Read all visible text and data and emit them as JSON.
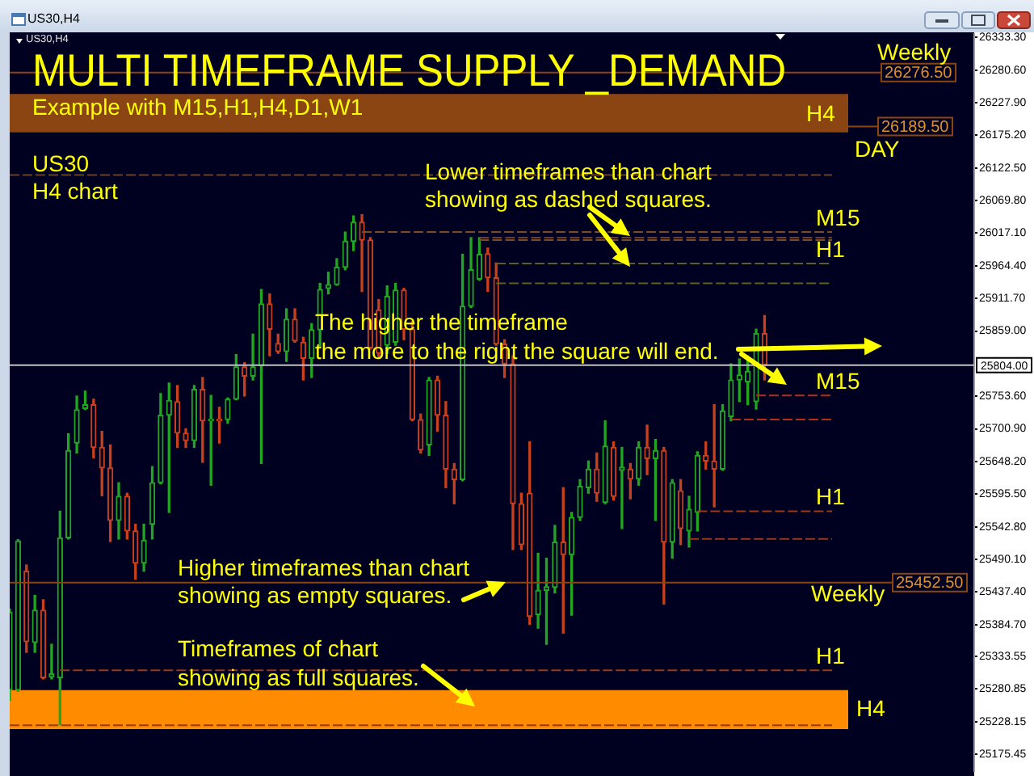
{
  "chart_data": {
    "type": "candlestick",
    "title": "MULTI TIMEFRAME SUPPLY _DEMAND",
    "subtitle": "Example with M15,H1,H4,D1,W1",
    "annotations": [
      "US30,H4",
      "US30,H4",
      "US30\nH4 chart",
      "Lower timeframes than chart\nshowing as dashed squares.",
      "The higher the timeframe\nthe more to the right the square will end.",
      "Higher timeframes than chart\nshowing as empty squares.",
      "Timeframes of chart\nshowing as full squares.",
      "Weekly",
      {
        "text": "DAY",
        "y": 26189.5
      },
      {
        "text": "Weekly",
        "y": 25452.5
      }
    ],
    "categories": [
      null,
      null,
      null,
      null,
      null,
      null,
      null,
      null,
      null,
      null,
      null,
      null,
      null,
      null,
      null,
      null,
      null,
      null,
      null,
      null,
      null,
      null,
      null,
      null,
      null,
      null,
      null,
      null,
      null,
      null,
      null,
      null,
      null,
      null,
      null,
      null,
      null,
      null,
      null,
      null,
      null,
      null,
      null,
      null,
      null,
      null,
      null,
      null,
      null,
      null,
      null,
      null,
      null,
      null,
      null,
      null,
      null,
      null,
      null,
      null,
      null,
      null,
      null,
      null,
      null,
      null,
      null,
      null,
      null,
      null,
      null,
      null,
      null,
      null,
      null,
      null,
      null,
      null,
      null,
      null,
      null,
      null,
      null,
      null,
      null,
      null,
      null,
      null,
      null,
      null,
      null,
      null,
      null,
      null,
      null,
      null,
      null,
      null,
      null,
      null,
      null,
      null,
      null,
      null,
      null,
      null,
      null,
      null,
      null,
      null,
      null,
      null,
      null,
      null,
      null,
      null
    ],
    "ohlc": [
      [
        25279,
        25410,
        25262,
        25405
      ],
      [
        25279,
        25522,
        25277,
        25520
      ],
      [
        25471,
        25481,
        25340,
        25357
      ],
      [
        25356,
        25432,
        25340,
        25408
      ],
      [
        25408,
        25425,
        25297,
        25299
      ],
      [
        25300,
        25353,
        25297,
        25305
      ],
      [
        25299,
        25568,
        25223,
        25525
      ],
      [
        25525,
        25693,
        25523,
        25666
      ],
      [
        25678,
        25754,
        25662,
        25732
      ],
      [
        25734,
        25762,
        25732,
        25740
      ],
      [
        25740,
        25749,
        25654,
        25671
      ],
      [
        25671,
        25697,
        25593,
        25638
      ],
      [
        25638,
        25675,
        25519,
        25553
      ],
      [
        25553,
        25614,
        25523,
        25592
      ],
      [
        25592,
        25597,
        25523,
        25536
      ],
      [
        25536,
        25547,
        25458,
        25484
      ],
      [
        25484,
        25547,
        25471,
        25521
      ],
      [
        25547,
        25640,
        25523,
        25614
      ],
      [
        25614,
        25758,
        25612,
        25723
      ],
      [
        25723,
        25775,
        25566,
        25747
      ],
      [
        25745,
        25771,
        25671,
        25694
      ],
      [
        25694,
        25701,
        25671,
        25682
      ],
      [
        25682,
        25771,
        25671,
        25765
      ],
      [
        25765,
        25784,
        25647,
        25714
      ],
      [
        25714,
        25755,
        25610,
        25716
      ],
      [
        25716,
        25736,
        25678,
        25714
      ],
      [
        25716,
        25751,
        25710,
        25749
      ],
      [
        25749,
        25821,
        25748,
        25801
      ],
      [
        25801,
        25808,
        25754,
        25786
      ],
      [
        25786,
        25854,
        25780,
        25801
      ],
      [
        25803,
        25926,
        25645,
        25903
      ],
      [
        25903,
        25919,
        25819,
        25862
      ],
      [
        25839,
        25854,
        25823,
        25826
      ],
      [
        25826,
        25895,
        25810,
        25878
      ],
      [
        25878,
        25895,
        25841,
        25843
      ],
      [
        25841,
        25849,
        25780,
        25815
      ],
      [
        25815,
        25871,
        25784,
        25861
      ],
      [
        25861,
        25936,
        25832,
        25926
      ],
      [
        25928,
        25954,
        25919,
        25934
      ],
      [
        25934,
        25976,
        25933,
        25962
      ],
      [
        25962,
        26019,
        25958,
        26004
      ],
      [
        26004,
        26045,
        25989,
        26035
      ],
      [
        26035,
        26047,
        25923,
        26006
      ],
      [
        26006,
        26010,
        25830,
        25832
      ],
      [
        25893,
        25910,
        25815,
        25823
      ],
      [
        25836,
        25932,
        25823,
        25915
      ],
      [
        25841,
        25936,
        25836,
        25925
      ],
      [
        25925,
        25928,
        25845,
        25862
      ],
      [
        25862,
        25875,
        25714,
        25716
      ],
      [
        25716,
        25725,
        25662,
        25667
      ],
      [
        25675,
        25784,
        25658,
        25780
      ],
      [
        25780,
        25786,
        25697,
        25723
      ],
      [
        25723,
        25745,
        25606,
        25636
      ],
      [
        25636,
        25645,
        25580,
        25619
      ],
      [
        25619,
        25983,
        25617,
        25899
      ],
      [
        25899,
        26010,
        25897,
        25958
      ],
      [
        25943,
        26010,
        25941,
        25983
      ],
      [
        25984,
        25993,
        25923,
        25945
      ],
      [
        25945,
        25969,
        25836,
        25838
      ],
      [
        25838,
        25845,
        25784,
        25806
      ],
      [
        25806,
        25819,
        25506,
        25580
      ],
      [
        25580,
        25597,
        25506,
        25514
      ],
      [
        25597,
        25680,
        25385,
        25398
      ],
      [
        25401,
        25500,
        25379,
        25440
      ],
      [
        25440,
        25492,
        25353,
        25446
      ],
      [
        25445,
        25545,
        25436,
        25518
      ],
      [
        25518,
        25606,
        25371,
        25498
      ],
      [
        25498,
        25566,
        25400,
        25558
      ],
      [
        25558,
        25619,
        25553,
        25608
      ],
      [
        25606,
        25649,
        25597,
        25636
      ],
      [
        25636,
        25662,
        25584,
        25597
      ],
      [
        25582,
        25714,
        25580,
        25673
      ],
      [
        25671,
        25680,
        25586,
        25592
      ],
      [
        25634,
        25671,
        25540,
        25639
      ],
      [
        25636,
        25645,
        25588,
        25620
      ],
      [
        25620,
        25680,
        25610,
        25671
      ],
      [
        25671,
        25707,
        25627,
        25653
      ],
      [
        25653,
        25684,
        25553,
        25666
      ],
      [
        25666,
        25671,
        25418,
        25518
      ],
      [
        25518,
        25619,
        25492,
        25614
      ],
      [
        25601,
        25619,
        25514,
        25540
      ],
      [
        25536,
        25592,
        25510,
        25571
      ],
      [
        25566,
        25664,
        25536,
        25658
      ],
      [
        25658,
        25680,
        25636,
        25649
      ],
      [
        25649,
        25740,
        25575,
        25636
      ],
      [
        25636,
        25740,
        25634,
        25730
      ],
      [
        25721,
        25806,
        25714,
        25780
      ],
      [
        25780,
        25814,
        25745,
        25788
      ],
      [
        25777,
        25819,
        25740,
        25794
      ],
      [
        25745,
        25862,
        25733,
        25855
      ],
      [
        25855,
        25884,
        25780,
        25804
      ],
      null,
      null,
      null,
      null,
      null,
      null,
      null,
      null,
      null,
      null,
      null,
      null,
      null,
      null,
      null,
      null,
      null,
      null,
      null,
      null,
      null,
      null,
      null,
      null,
      null
    ],
    "colors": [
      "#22a622",
      "#22a622",
      "#c8401c",
      "#22a622",
      "#c8401c",
      "#22a622",
      "#22a622",
      "#22a622",
      "#22a622",
      "#22a622",
      "#c8401c",
      "#c8401c",
      "#c8401c",
      "#22a622",
      "#c8401c",
      "#c8401c",
      "#22a622",
      "#22a622",
      "#22a622",
      "#22a622",
      "#c8401c",
      "#c8401c",
      "#22a622",
      "#c8401c",
      "#22a622",
      "#c8401c",
      "#22a622",
      "#22a622",
      "#c8401c",
      "#22a622",
      "#22a622",
      "#c8401c",
      "#c8401c",
      "#22a622",
      "#c8401c",
      "#c8401c",
      "#22a622",
      "#22a622",
      "#22a622",
      "#22a622",
      "#22a622",
      "#22a622",
      "#c8401c",
      "#c8401c",
      "#c8401c",
      "#22a622",
      "#22a622",
      "#c8401c",
      "#c8401c",
      "#c8401c",
      "#22a622",
      "#c8401c",
      "#c8401c",
      "#c8401c",
      "#22a622",
      "#22a622",
      "#22a622",
      "#c8401c",
      "#c8401c",
      "#c8401c",
      "#c8401c",
      "#c8401c",
      "#c8401c",
      "#22a622",
      "#22a622",
      "#22a622",
      "#c8401c",
      "#22a622",
      "#22a622",
      "#22a622",
      "#c8401c",
      "#22a622",
      "#c8401c",
      "#22a622",
      "#c8401c",
      "#22a622",
      "#c8401c",
      "#22a622",
      "#c8401c",
      "#22a622",
      "#c8401c",
      "#22a622",
      "#22a622",
      "#c8401c",
      "#c8401c",
      "#22a622",
      "#22a622",
      "#22a622",
      "#22a622",
      "#22a622",
      "#c8401c",
      null,
      null,
      null,
      null,
      null,
      null,
      null,
      null,
      null,
      null,
      null,
      null,
      null,
      null,
      null,
      null,
      null,
      null,
      null,
      null,
      null,
      null,
      null,
      null,
      null
    ],
    "ylim": [
      25148,
      26339
    ],
    "yticks": [
      {
        "value": 26333.3,
        "label": "26333.30"
      },
      {
        "value": 26280.6,
        "label": "26280.60"
      },
      {
        "value": 26227.9,
        "label": "26227.90"
      },
      {
        "value": 26175.2,
        "label": "26175.20"
      },
      {
        "value": 26122.5,
        "label": "26122.50"
      },
      {
        "value": 26069.8,
        "label": "26069.80"
      },
      {
        "value": 26017.1,
        "label": "26017.10"
      },
      {
        "value": 25964.4,
        "label": "25964.40"
      },
      {
        "value": 25911.7,
        "label": "25911.70"
      },
      {
        "value": 25859,
        "label": "25859.00"
      },
      {
        "value": 25753.6,
        "label": "25753.60"
      },
      {
        "value": 25700.9,
        "label": "25700.90"
      },
      {
        "value": 25648.2,
        "label": "25648.20"
      },
      {
        "value": 25595.5,
        "label": "25595.50"
      },
      {
        "value": 25542.8,
        "label": "25542.80"
      },
      {
        "value": 25490.1,
        "label": "25490.10"
      },
      {
        "value": 25437.4,
        "label": "25437.40"
      },
      {
        "value": 25384.7,
        "label": "25384.70"
      },
      {
        "value": 25333.55,
        "label": "25333.55"
      },
      {
        "value": 25280.85,
        "label": "25280.85"
      },
      {
        "value": 25228.15,
        "label": "25228.15"
      },
      {
        "value": 25175.45,
        "label": "25175.45"
      }
    ],
    "ref_lines": [
      {
        "axis": "y",
        "value": 26276.5,
        "label": "26276.50",
        "color": "#8b4513"
      },
      {
        "axis": "y",
        "value": 26189.5,
        "label": "26189.50",
        "color": "#8b4513"
      },
      {
        "axis": "y",
        "value": 25452.5,
        "label": "25452.50",
        "color": "#8b4513"
      },
      {
        "axis": "y",
        "value": 25804,
        "label": "25804.00",
        "color": "#c0c0c0"
      },
      {
        "axis": "y",
        "value": 26111,
        "color": "#6a4028",
        "line_style": "dashed"
      },
      {
        "axis": "y",
        "value": 26010,
        "color": "#6a4028",
        "line_style": "dashed"
      },
      {
        "axis": "y",
        "value": 26019,
        "label": "M15",
        "color": "#7a4a2a",
        "line_style": "dashed"
      },
      {
        "axis": "y",
        "value": 26006,
        "color": "#7a4a2a",
        "line_style": "dashed"
      },
      {
        "axis": "y",
        "value": 25968,
        "label": "H1",
        "color": "#5f5f22",
        "line_style": "dashed"
      },
      {
        "axis": "y",
        "value": 25936,
        "color": "#5f5f22",
        "line_style": "dashed"
      },
      {
        "axis": "y",
        "value": 25755,
        "label": "M15",
        "color": "#b0301a",
        "line_style": "dashed"
      },
      {
        "axis": "y",
        "value": 25716,
        "color": "#b0301a",
        "line_style": "dashed"
      },
      {
        "axis": "y",
        "value": 25568,
        "label": "H1",
        "color": "#9a3a1a",
        "line_style": "dashed"
      },
      {
        "axis": "y",
        "value": 25523,
        "color": "#9a3a1a",
        "line_style": "dashed"
      },
      {
        "axis": "y",
        "value": 25311,
        "label": "H1",
        "color": "#9a3a1a",
        "line_style": "dashed"
      },
      {
        "axis": "y",
        "value": 25222,
        "color": "#9a3a1a",
        "line_style": "dashed"
      }
    ],
    "bands": [
      {
        "axis": "y",
        "from": 26180,
        "to": 26242,
        "label": "H4",
        "color": "#8b4513"
      },
      {
        "axis": "y",
        "from": 25216,
        "to": 25279,
        "label": "H4",
        "color": "#ff8c00"
      }
    ],
    "tick_labels": "y"
  }
}
